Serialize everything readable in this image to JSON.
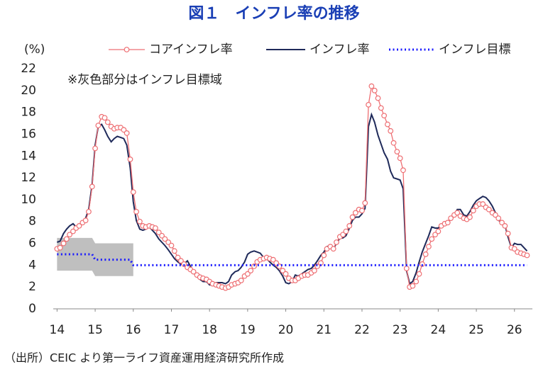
{
  "chart_data": {
    "type": "line",
    "title": "図１　インフレ率の推移",
    "y_unit_label": "(%)",
    "annotation": "※灰色部分はインフレ目標域",
    "source": "（出所）CEIC より第一ライフ資産運用経済研究所作成",
    "xlim": [
      13.9,
      26.47
    ],
    "ylim": [
      0,
      22
    ],
    "xticks": [
      14,
      15,
      16,
      17,
      18,
      19,
      20,
      21,
      22,
      23,
      24,
      25,
      26
    ],
    "yticks": [
      0,
      2,
      4,
      6,
      8,
      10,
      12,
      14,
      16,
      18,
      20,
      22
    ],
    "target_band": {
      "color": "#bfbfbf",
      "x": [
        14,
        14.92,
        15,
        16
      ],
      "low": [
        3.5,
        3.5,
        3,
        3
      ],
      "high": [
        6.5,
        6.5,
        6,
        6
      ]
    },
    "x": [
      14,
      14.08,
      14.17,
      14.25,
      14.33,
      14.42,
      14.5,
      14.58,
      14.67,
      14.75,
      14.83,
      14.92,
      15,
      15.08,
      15.17,
      15.25,
      15.33,
      15.42,
      15.5,
      15.58,
      15.67,
      15.75,
      15.83,
      15.92,
      16,
      16.08,
      16.17,
      16.25,
      16.33,
      16.42,
      16.5,
      16.58,
      16.67,
      16.75,
      16.83,
      16.92,
      17,
      17.08,
      17.17,
      17.25,
      17.33,
      17.42,
      17.5,
      17.58,
      17.67,
      17.75,
      17.83,
      17.92,
      18,
      18.08,
      18.17,
      18.25,
      18.33,
      18.42,
      18.5,
      18.58,
      18.67,
      18.75,
      18.83,
      18.92,
      19,
      19.08,
      19.17,
      19.25,
      19.33,
      19.42,
      19.5,
      19.58,
      19.67,
      19.75,
      19.83,
      19.92,
      20,
      20.08,
      20.17,
      20.25,
      20.33,
      20.42,
      20.5,
      20.58,
      20.67,
      20.75,
      20.83,
      20.92,
      21,
      21.08,
      21.17,
      21.25,
      21.33,
      21.42,
      21.5,
      21.58,
      21.67,
      21.75,
      21.83,
      21.92,
      22,
      22.08,
      22.17,
      22.25,
      22.33,
      22.42,
      22.5,
      22.58,
      22.67,
      22.75,
      22.83,
      22.92,
      23,
      23.08,
      23.17,
      23.25,
      23.33,
      23.42,
      23.5,
      23.58,
      23.67,
      23.75,
      23.83,
      23.92,
      24,
      24.08,
      24.17,
      24.25,
      24.33,
      24.42,
      24.5,
      24.58,
      24.67,
      24.75,
      24.83,
      24.92,
      25,
      25.08,
      25.17,
      25.25,
      25.33,
      25.42,
      25.5,
      25.58,
      25.67,
      25.75,
      25.83,
      25.92,
      26,
      26.08,
      26.17,
      26.25,
      26.33
    ],
    "series": [
      {
        "name": "コアインフレ率",
        "color": "#ee6f73",
        "marker": "circle",
        "values": [
          5.5,
          5.6,
          6.0,
          6.4,
          6.8,
          7.1,
          7.4,
          7.6,
          7.9,
          8.1,
          8.9,
          11.2,
          14.7,
          16.8,
          17.6,
          17.5,
          17.1,
          16.7,
          16.5,
          16.6,
          16.6,
          16.4,
          16.1,
          13.7,
          10.7,
          8.9,
          8.0,
          7.6,
          7.5,
          7.6,
          7.5,
          7.4,
          7.0,
          6.7,
          6.4,
          6.1,
          5.8,
          5.3,
          4.7,
          4.4,
          4.1,
          3.8,
          3.6,
          3.4,
          3.1,
          2.9,
          2.8,
          2.7,
          2.5,
          2.3,
          2.2,
          2.1,
          2.0,
          1.9,
          2.0,
          2.2,
          2.3,
          2.4,
          2.6,
          3.0,
          3.2,
          3.5,
          3.9,
          4.3,
          4.5,
          4.6,
          4.7,
          4.6,
          4.5,
          4.2,
          3.9,
          3.5,
          3.2,
          2.8,
          2.6,
          2.6,
          2.8,
          3.0,
          3.1,
          3.1,
          3.3,
          3.5,
          3.9,
          4.2,
          4.9,
          5.5,
          5.7,
          5.5,
          6.1,
          6.6,
          6.8,
          7.1,
          7.6,
          8.4,
          8.8,
          9.1,
          9.0,
          9.7,
          18.7,
          20.4,
          20.0,
          19.3,
          18.4,
          17.7,
          16.9,
          16.3,
          15.2,
          14.4,
          13.8,
          12.7,
          3.7,
          2.0,
          2.1,
          2.5,
          3.2,
          4.1,
          5.0,
          5.7,
          6.4,
          6.8,
          7.1,
          7.6,
          7.8,
          7.9,
          8.3,
          8.6,
          8.8,
          8.5,
          8.3,
          8.2,
          8.4,
          9.0,
          9.4,
          9.6,
          9.6,
          9.3,
          9.1,
          8.8,
          8.6,
          8.3,
          7.9,
          7.6,
          6.9,
          5.6,
          5.5,
          5.2,
          5.1,
          5.0,
          4.9
        ]
      },
      {
        "name": "インフレ率",
        "color": "#1f2a5a",
        "values": [
          6.1,
          6.2,
          6.9,
          7.3,
          7.6,
          7.8,
          7.5,
          7.6,
          8.0,
          8.3,
          9.1,
          11.4,
          15.0,
          16.7,
          16.9,
          16.4,
          15.8,
          15.3,
          15.6,
          15.8,
          15.7,
          15.6,
          15.0,
          12.9,
          9.8,
          8.1,
          7.3,
          7.2,
          7.3,
          7.5,
          7.2,
          6.9,
          6.4,
          6.1,
          5.8,
          5.4,
          5.0,
          4.6,
          4.3,
          4.1,
          4.1,
          4.4,
          3.9,
          3.3,
          3.0,
          2.7,
          2.5,
          2.5,
          2.2,
          2.2,
          2.4,
          2.4,
          2.4,
          2.3,
          2.5,
          3.1,
          3.4,
          3.5,
          3.8,
          4.3,
          5.0,
          5.2,
          5.3,
          5.2,
          5.1,
          4.7,
          4.6,
          4.3,
          4.0,
          3.8,
          3.5,
          3.0,
          2.4,
          2.3,
          2.5,
          3.1,
          3.0,
          3.2,
          3.4,
          3.6,
          3.7,
          4.0,
          4.4,
          4.9,
          5.2,
          5.7,
          5.8,
          5.5,
          6.0,
          6.5,
          6.5,
          6.7,
          7.4,
          8.1,
          8.4,
          8.4,
          8.7,
          9.2,
          16.7,
          17.8,
          17.1,
          15.9,
          15.1,
          14.3,
          13.7,
          12.6,
          12.0,
          11.9,
          11.8,
          11.0,
          3.5,
          2.3,
          2.5,
          3.3,
          4.3,
          5.2,
          6.0,
          6.7,
          7.5,
          7.4,
          7.4,
          7.7,
          7.7,
          7.8,
          8.3,
          8.6,
          9.1,
          9.1,
          8.6,
          8.5,
          8.9,
          9.5,
          9.9,
          10.1,
          10.3,
          10.2,
          9.9,
          9.4,
          8.8,
          8.1,
          8.0,
          7.7,
          6.6,
          5.6,
          6.0,
          5.9,
          5.9,
          5.6,
          5.3
        ]
      },
      {
        "name": "インフレ目標",
        "color": "#1a1aff",
        "dash": "dotted",
        "x": [
          14,
          14.92,
          15,
          15.92,
          16,
          26.33
        ],
        "values": [
          5,
          5,
          4.5,
          4.5,
          4,
          4
        ]
      }
    ]
  }
}
